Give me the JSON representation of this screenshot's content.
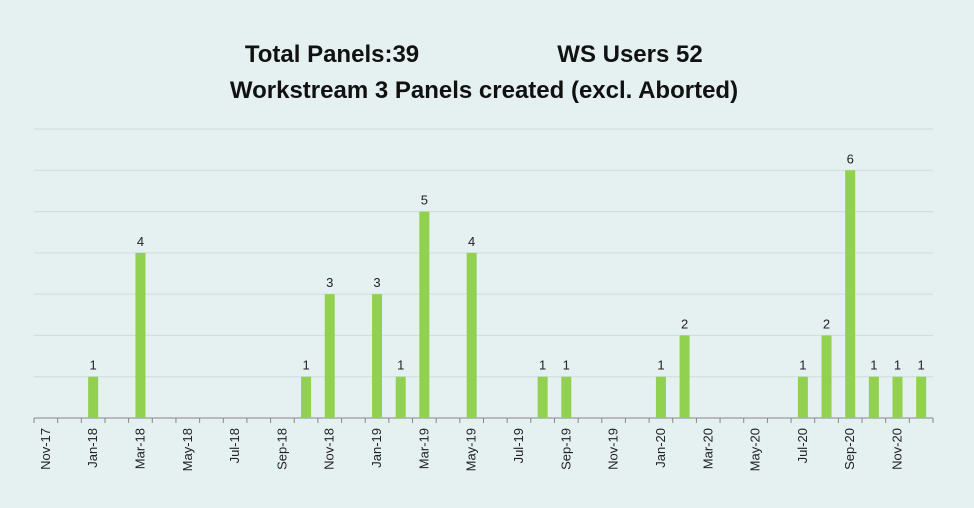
{
  "chart_data": {
    "type": "bar",
    "title": "Workstream 3 Panels created (excl. Aborted)",
    "annotations": [
      "Total Panels:39",
      "WS Users 52"
    ],
    "categories": [
      "Nov-17",
      null,
      "Jan-18",
      null,
      "Mar-18",
      null,
      "May-18",
      null,
      "Jul-18",
      null,
      "Sep-18",
      null,
      "Nov-18",
      null,
      "Jan-19",
      null,
      "Mar-19",
      null,
      "May-19",
      null,
      "Jul-19",
      null,
      "Sep-19",
      null,
      "Nov-19",
      null,
      "Jan-20",
      null,
      "Mar-20",
      null,
      "May-20",
      null,
      "Jul-20",
      null,
      "Sep-20",
      null,
      "Nov-20",
      null
    ],
    "values": [
      0,
      0,
      1,
      0,
      4,
      0,
      0,
      0,
      0,
      0,
      0,
      1,
      3,
      0,
      3,
      1,
      5,
      0,
      4,
      0,
      0,
      1,
      1,
      0,
      0,
      0,
      1,
      2,
      0,
      0,
      0,
      0,
      1,
      2,
      6,
      1,
      1,
      1
    ],
    "color": "#92d050",
    "ylim": [
      0,
      7
    ],
    "yticks": [
      0,
      1,
      2,
      3,
      4,
      5,
      6,
      7
    ],
    "grid": true
  }
}
